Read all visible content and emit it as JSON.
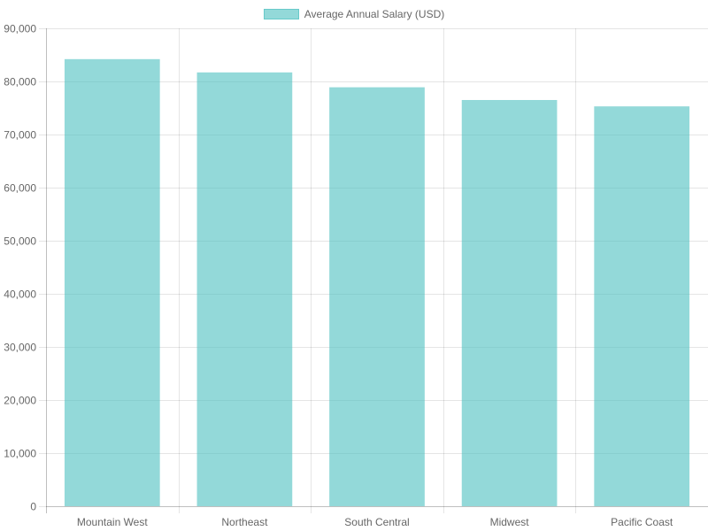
{
  "chart_data": {
    "type": "bar",
    "categories": [
      "Mountain West",
      "Northeast",
      "South Central",
      "Midwest",
      "Pacific Coast"
    ],
    "series": [
      {
        "name": "Average Annual Salary (USD)",
        "values": [
          84200,
          81700,
          78900,
          76500,
          75300
        ],
        "color": "#4bc0c0"
      }
    ],
    "title": "",
    "xlabel": "",
    "ylabel": "",
    "ylim": [
      0,
      90000
    ],
    "y_ticks": [
      "0",
      "10,000",
      "20,000",
      "30,000",
      "40,000",
      "50,000",
      "60,000",
      "70,000",
      "80,000",
      "90,000"
    ],
    "grid": true,
    "legend_position": "top-center"
  }
}
